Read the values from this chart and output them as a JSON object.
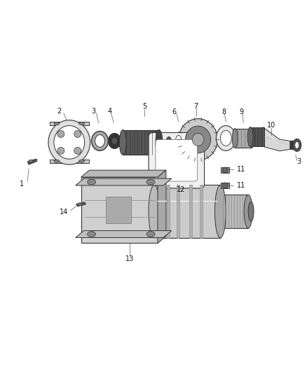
{
  "background_color": "#ffffff",
  "fig_width": 4.38,
  "fig_height": 5.33,
  "dpi": 100,
  "line_color": "#333333",
  "dark_fill": "#222222",
  "mid_fill": "#888888",
  "light_fill": "#cccccc",
  "lighter_fill": "#e8e8e8",
  "white_fill": "#ffffff",
  "label_fs": 7.0
}
